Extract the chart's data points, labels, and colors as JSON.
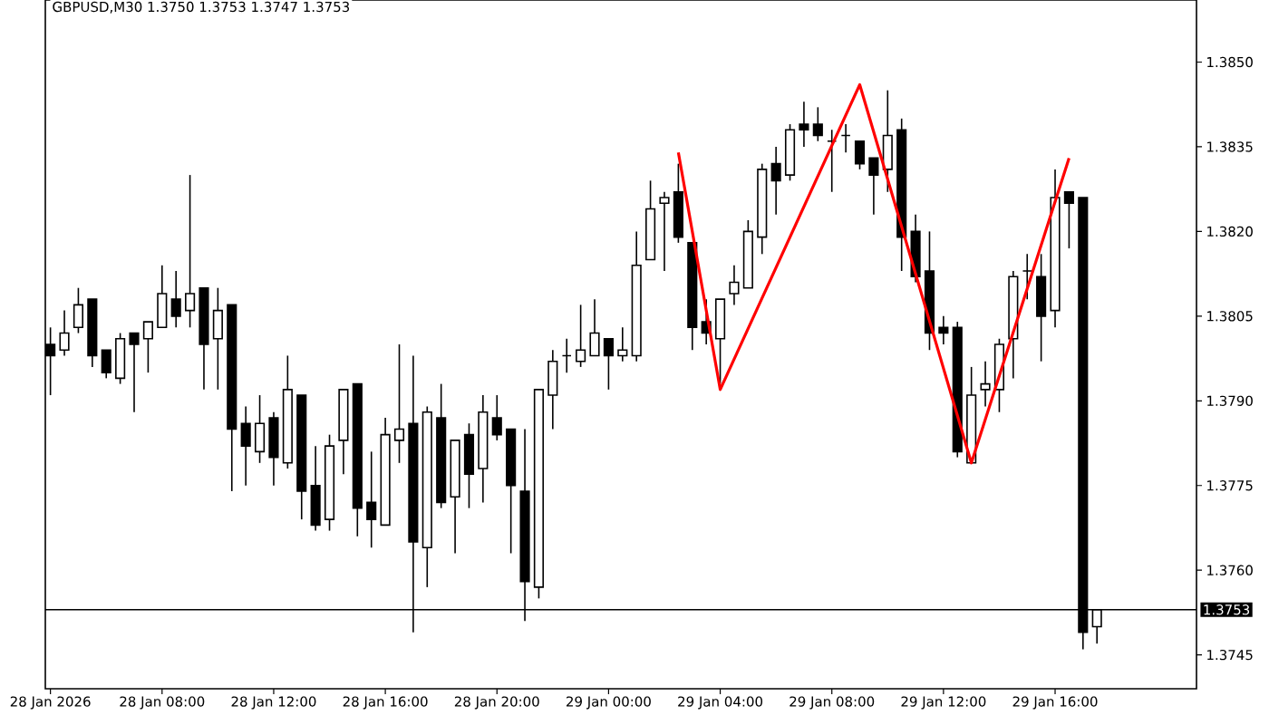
{
  "chart_data": {
    "type": "candlestick",
    "title": "GBPUSD,M30 1.3750 1.3753 1.3747 1.3753",
    "color": "#000000",
    "x": [
      "2026-01-28T04:00",
      "2026-01-28T04:30",
      "2026-01-28T05:00",
      "2026-01-28T05:30",
      "2026-01-28T06:00",
      "2026-01-28T06:30",
      "2026-01-28T07:00",
      "2026-01-28T07:30",
      "2026-01-28T08:00",
      "2026-01-28T08:30",
      "2026-01-28T09:00",
      "2026-01-28T09:30",
      "2026-01-28T10:00",
      "2026-01-28T10:30",
      "2026-01-28T11:00",
      "2026-01-28T11:30",
      "2026-01-28T12:00",
      "2026-01-28T12:30",
      "2026-01-28T13:00",
      "2026-01-28T13:30",
      "2026-01-28T14:00",
      "2026-01-28T14:30",
      "2026-01-28T15:00",
      "2026-01-28T15:30",
      "2026-01-28T16:00",
      "2026-01-28T16:30",
      "2026-01-28T17:00",
      "2026-01-28T17:30",
      "2026-01-28T18:00",
      "2026-01-28T18:30",
      "2026-01-28T19:00",
      "2026-01-28T19:30",
      "2026-01-28T20:00",
      "2026-01-28T20:30",
      "2026-01-28T21:00",
      "2026-01-28T21:30",
      "2026-01-28T22:00",
      "2026-01-28T22:30",
      "2026-01-28T23:00",
      "2026-01-28T23:30",
      "2026-01-29T00:00",
      "2026-01-29T00:30",
      "2026-01-29T01:00",
      "2026-01-29T01:30",
      "2026-01-29T02:00",
      "2026-01-29T02:30",
      "2026-01-29T03:00",
      "2026-01-29T03:30",
      "2026-01-29T04:00",
      "2026-01-29T04:30",
      "2026-01-29T05:00",
      "2026-01-29T05:30",
      "2026-01-29T06:00",
      "2026-01-29T06:30",
      "2026-01-29T07:00",
      "2026-01-29T07:30",
      "2026-01-29T08:00",
      "2026-01-29T08:30",
      "2026-01-29T09:00",
      "2026-01-29T09:30",
      "2026-01-29T10:00",
      "2026-01-29T10:30",
      "2026-01-29T11:00",
      "2026-01-29T11:30",
      "2026-01-29T12:00",
      "2026-01-29T12:30",
      "2026-01-29T13:00",
      "2026-01-29T13:30",
      "2026-01-29T14:00",
      "2026-01-29T14:30",
      "2026-01-29T15:00",
      "2026-01-29T15:30",
      "2026-01-29T16:00",
      "2026-01-29T16:30",
      "2026-01-29T17:00",
      "2026-01-29T17:30"
    ],
    "ohlc": [
      [
        1.38,
        1.3803,
        1.3791,
        1.3798
      ],
      [
        1.3799,
        1.3806,
        1.3798,
        1.3802
      ],
      [
        1.3803,
        1.381,
        1.3802,
        1.3807
      ],
      [
        1.3808,
        1.3808,
        1.3796,
        1.3798
      ],
      [
        1.3799,
        1.3799,
        1.3794,
        1.3795
      ],
      [
        1.3794,
        1.3802,
        1.3793,
        1.3801
      ],
      [
        1.3802,
        1.3802,
        1.3788,
        1.38
      ],
      [
        1.3801,
        1.3804,
        1.3795,
        1.3804
      ],
      [
        1.3803,
        1.3814,
        1.3803,
        1.3809
      ],
      [
        1.3808,
        1.3813,
        1.3803,
        1.3805
      ],
      [
        1.3806,
        1.383,
        1.3803,
        1.3809
      ],
      [
        1.381,
        1.381,
        1.3792,
        1.38
      ],
      [
        1.3801,
        1.381,
        1.3792,
        1.3806
      ],
      [
        1.3807,
        1.3807,
        1.3774,
        1.3785
      ],
      [
        1.3786,
        1.3789,
        1.3775,
        1.3782
      ],
      [
        1.3781,
        1.3791,
        1.3779,
        1.3786
      ],
      [
        1.3787,
        1.3788,
        1.3775,
        1.378
      ],
      [
        1.3779,
        1.3798,
        1.3778,
        1.3792
      ],
      [
        1.3791,
        1.3791,
        1.3769,
        1.3774
      ],
      [
        1.3775,
        1.3782,
        1.3767,
        1.3768
      ],
      [
        1.3769,
        1.3784,
        1.3767,
        1.3782
      ],
      [
        1.3783,
        1.3792,
        1.3777,
        1.3792
      ],
      [
        1.3793,
        1.3793,
        1.3766,
        1.3771
      ],
      [
        1.3772,
        1.3781,
        1.3764,
        1.3769
      ],
      [
        1.3768,
        1.3787,
        1.3768,
        1.3784
      ],
      [
        1.3783,
        1.38,
        1.3779,
        1.3785
      ],
      [
        1.3786,
        1.3798,
        1.3749,
        1.3765
      ],
      [
        1.3764,
        1.3789,
        1.3757,
        1.3788
      ],
      [
        1.3787,
        1.3793,
        1.3771,
        1.3772
      ],
      [
        1.3773,
        1.3783,
        1.3763,
        1.3783
      ],
      [
        1.3784,
        1.3786,
        1.3771,
        1.3777
      ],
      [
        1.3778,
        1.3791,
        1.3772,
        1.3788
      ],
      [
        1.3787,
        1.3791,
        1.3783,
        1.3784
      ],
      [
        1.3785,
        1.3785,
        1.3763,
        1.3775
      ],
      [
        1.3774,
        1.3785,
        1.3751,
        1.3758
      ],
      [
        1.3757,
        1.3792,
        1.3755,
        1.3792
      ],
      [
        1.3791,
        1.3799,
        1.3785,
        1.3797
      ],
      [
        1.3798,
        1.3801,
        1.3795,
        1.3798
      ],
      [
        1.3797,
        1.3807,
        1.3796,
        1.3799
      ],
      [
        1.3798,
        1.3808,
        1.3798,
        1.3802
      ],
      [
        1.3801,
        1.3801,
        1.3792,
        1.3798
      ],
      [
        1.3798,
        1.3803,
        1.3797,
        1.3799
      ],
      [
        1.3798,
        1.382,
        1.3797,
        1.3814
      ],
      [
        1.3815,
        1.3829,
        1.3815,
        1.3824
      ],
      [
        1.3825,
        1.3827,
        1.3813,
        1.3826
      ],
      [
        1.3827,
        1.3832,
        1.3818,
        1.3819
      ],
      [
        1.3818,
        1.3818,
        1.3799,
        1.3803
      ],
      [
        1.3804,
        1.3808,
        1.38,
        1.3802
      ],
      [
        1.3801,
        1.3808,
        1.3793,
        1.3808
      ],
      [
        1.3809,
        1.3814,
        1.3807,
        1.3811
      ],
      [
        1.381,
        1.3822,
        1.381,
        1.382
      ],
      [
        1.3819,
        1.3832,
        1.3816,
        1.3831
      ],
      [
        1.3832,
        1.3835,
        1.3823,
        1.3829
      ],
      [
        1.383,
        1.3839,
        1.3829,
        1.3838
      ],
      [
        1.3839,
        1.3843,
        1.3835,
        1.3838
      ],
      [
        1.3839,
        1.3842,
        1.3836,
        1.3837
      ],
      [
        1.3836,
        1.3838,
        1.3827,
        1.3836
      ],
      [
        1.3837,
        1.3839,
        1.3834,
        1.3837
      ],
      [
        1.3836,
        1.3836,
        1.3831,
        1.3832
      ],
      [
        1.3833,
        1.3833,
        1.3823,
        1.383
      ],
      [
        1.3831,
        1.3845,
        1.3827,
        1.3837
      ],
      [
        1.3838,
        1.384,
        1.3813,
        1.3819
      ],
      [
        1.382,
        1.3823,
        1.3811,
        1.3812
      ],
      [
        1.3813,
        1.382,
        1.3799,
        1.3802
      ],
      [
        1.3803,
        1.3805,
        1.38,
        1.3802
      ],
      [
        1.3803,
        1.3804,
        1.378,
        1.3781
      ],
      [
        1.3779,
        1.3796,
        1.3779,
        1.3791
      ],
      [
        1.3792,
        1.3797,
        1.3789,
        1.3793
      ],
      [
        1.3792,
        1.3801,
        1.3788,
        1.38
      ],
      [
        1.3801,
        1.3813,
        1.3794,
        1.3812
      ],
      [
        1.3813,
        1.3816,
        1.3808,
        1.3813
      ],
      [
        1.3812,
        1.3816,
        1.3797,
        1.3805
      ],
      [
        1.3806,
        1.3831,
        1.3803,
        1.3826
      ],
      [
        1.3827,
        1.3827,
        1.3817,
        1.3825
      ],
      [
        1.3826,
        1.3826,
        1.3746,
        1.3749
      ],
      [
        1.375,
        1.3753,
        1.3747,
        1.3753
      ]
    ],
    "series": [
      {
        "type": "line",
        "color": "#ff0000",
        "x": [
          "2026-01-29T02:30",
          "2026-01-29T04:00",
          "2026-01-29T09:00",
          "2026-01-29T13:00",
          "2026-01-29T16:30"
        ],
        "values": [
          1.3834,
          1.3792,
          1.3846,
          1.3779,
          1.3833
        ]
      }
    ],
    "xlim": [
      "2026-01-28T03:49",
      "2026-01-29T21:04"
    ],
    "xticks": [
      {
        "value": "2026-01-28T04:00",
        "label": "28 Jan 2026"
      },
      {
        "value": "2026-01-28T08:00",
        "label": "28 Jan 08:00"
      },
      {
        "value": "2026-01-28T12:00",
        "label": "28 Jan 12:00"
      },
      {
        "value": "2026-01-28T16:00",
        "label": "28 Jan 16:00"
      },
      {
        "value": "2026-01-28T20:00",
        "label": "28 Jan 20:00"
      },
      {
        "value": "2026-01-29T00:00",
        "label": "29 Jan 00:00"
      },
      {
        "value": "2026-01-29T04:00",
        "label": "29 Jan 04:00"
      },
      {
        "value": "2026-01-29T08:00",
        "label": "29 Jan 08:00"
      },
      {
        "value": "2026-01-29T12:00",
        "label": "29 Jan 12:00"
      },
      {
        "value": "2026-01-29T16:00",
        "label": "29 Jan 16:00"
      }
    ],
    "ylim": [
      1.3739,
      1.3861
    ],
    "yticks": [
      1.3745,
      {
        "value": 1.376,
        "label": "1.3760"
      },
      1.3775,
      {
        "value": 1.379,
        "label": "1.3790"
      },
      1.3805,
      {
        "value": 1.382,
        "label": "1.3820"
      },
      1.3835,
      {
        "value": 1.385,
        "label": "1.3850"
      }
    ],
    "ref_lines": [
      {
        "axis": "y",
        "value": 1.3753,
        "label": "1.3753",
        "color": "#000000"
      }
    ]
  }
}
